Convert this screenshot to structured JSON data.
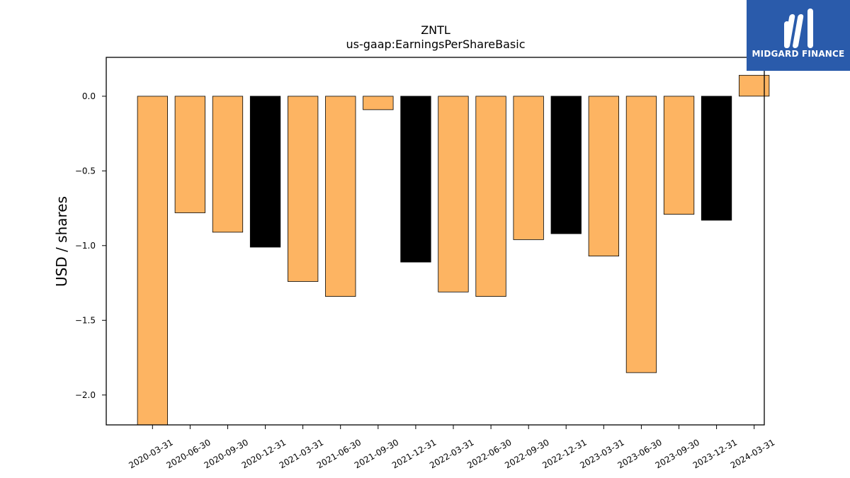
{
  "chart_data": {
    "type": "bar",
    "title": "ZNTL",
    "subtitle": "us-gaap:EarningsPerShareBasic",
    "xlabel": "",
    "ylabel": "USD / shares",
    "ylim": [
      -2.2,
      0.26
    ],
    "yticks": [
      0.0,
      -0.5,
      -1.0,
      -1.5,
      -2.0
    ],
    "ytick_labels": [
      "0.0",
      "−0.5",
      "−1.0",
      "−1.5",
      "−2.0"
    ],
    "grid": false,
    "categories": [
      "2020-03-31",
      "2020-06-30",
      "2020-09-30",
      "2020-12-31",
      "2021-03-31",
      "2021-06-30",
      "2021-09-30",
      "2021-12-31",
      "2022-03-31",
      "2022-06-30",
      "2022-09-30",
      "2022-12-31",
      "2023-03-31",
      "2023-06-30",
      "2023-09-30",
      "2023-12-31",
      "2024-03-31"
    ],
    "values": [
      -2.2,
      -0.78,
      -0.91,
      -1.01,
      -1.24,
      -1.34,
      -0.09,
      -1.11,
      -1.31,
      -1.34,
      -0.96,
      -0.92,
      -1.07,
      -1.85,
      -0.79,
      -0.83,
      0.14
    ],
    "bar_colors": [
      "#fdb462",
      "#fdb462",
      "#fdb462",
      "#000000",
      "#fdb462",
      "#fdb462",
      "#fdb462",
      "#000000",
      "#fdb462",
      "#fdb462",
      "#fdb462",
      "#000000",
      "#fdb462",
      "#fdb462",
      "#fdb462",
      "#000000",
      "#fdb462"
    ],
    "colors": {
      "regular": "#fdb462",
      "fiscal_year_end": "#000000",
      "edge": "#000000"
    }
  },
  "logo": {
    "text": "MIDGARD FINANCE",
    "icon": "midgard-logo-icon",
    "background": "#2a5bab"
  }
}
